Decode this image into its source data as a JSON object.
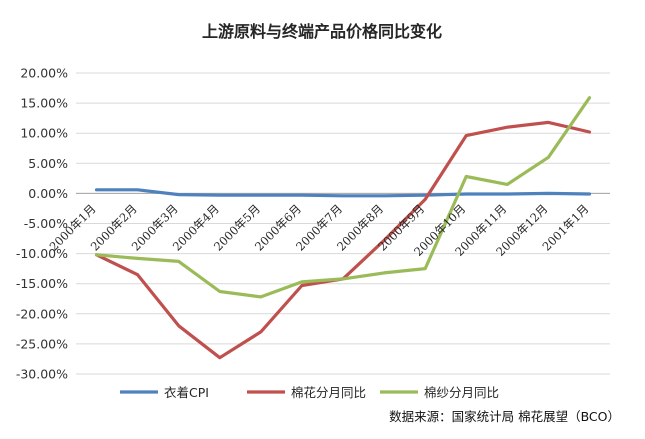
{
  "chart_data": {
    "type": "line",
    "title": "上游原料与终端产品价格同比变化",
    "categories": [
      "2000年1月",
      "2000年2月",
      "2000年3月",
      "2000年4月",
      "2000年5月",
      "2000年6月",
      "2000年7月",
      "2000年8月",
      "2000年9月",
      "2000年10月",
      "2000年11月",
      "2000年12月",
      "2001年1月"
    ],
    "yticks": [
      "20.00%",
      "15.00%",
      "10.00%",
      "5.00%",
      "0.00%",
      "-5.00%",
      "-10.00%",
      "-15.00%",
      "-20.00%",
      "-25.00%",
      "-30.00%"
    ],
    "ylim": [
      -30,
      20
    ],
    "grid": true,
    "legend_position": "bottom",
    "series": [
      {
        "name": "衣着CPI",
        "color": "#4F81BD",
        "values": [
          0.6,
          0.6,
          -0.2,
          -0.3,
          -0.3,
          -0.3,
          -0.4,
          -0.4,
          -0.3,
          -0.1,
          -0.1,
          0.0,
          -0.1
        ]
      },
      {
        "name": "棉花分月同比",
        "color": "#C0504D",
        "values": [
          -10.2,
          -13.5,
          -22.0,
          -27.3,
          -23.0,
          -15.3,
          -14.2,
          -7.8,
          -1.0,
          9.6,
          11.0,
          11.8,
          10.2
        ]
      },
      {
        "name": "棉纱分月同比",
        "color": "#9BBB59",
        "values": [
          -10.2,
          -10.8,
          -11.3,
          -16.3,
          -17.2,
          -14.7,
          -14.2,
          -13.2,
          -12.5,
          2.8,
          1.5,
          6.0,
          15.9
        ]
      }
    ],
    "source": "数据来源：国家统计局 棉花展望（BCO）"
  }
}
